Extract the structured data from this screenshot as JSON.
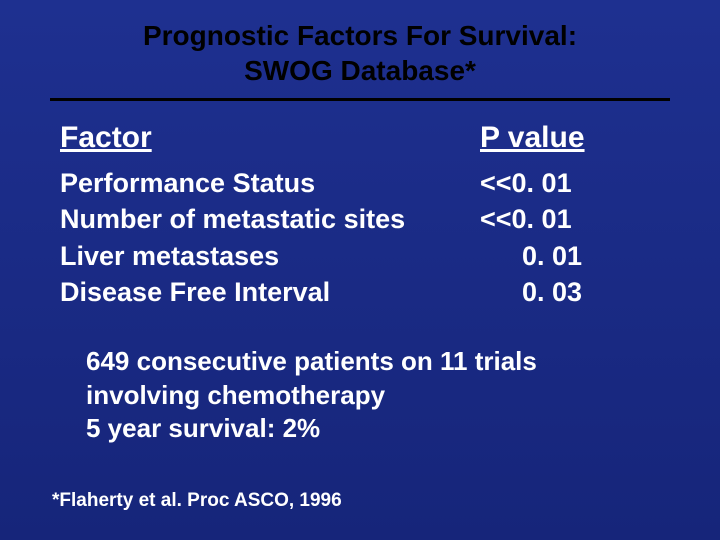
{
  "colors": {
    "background_top": "#1e3090",
    "background_bottom": "#16257a",
    "title_text": "#000000",
    "body_text": "#ffffff",
    "rule": "#000000"
  },
  "typography": {
    "family": "Arial",
    "title_fontsize": 28,
    "header_fontsize": 30,
    "row_fontsize": 27,
    "notes_fontsize": 26,
    "footnote_fontsize": 19,
    "weight": "bold"
  },
  "title": {
    "line1": "Prognostic Factors For Survival:",
    "line2": "SWOG Database*"
  },
  "table": {
    "headers": {
      "factor": "Factor",
      "pvalue": "P value"
    },
    "rows": [
      {
        "factor": "Performance Status",
        "pvalue": "<<0. 01",
        "indent": false
      },
      {
        "factor": "Number of metastatic sites",
        "pvalue": "<<0. 01",
        "indent": false
      },
      {
        "factor": "Liver metastases",
        "pvalue": "0. 01",
        "indent": true
      },
      {
        "factor": "Disease Free Interval",
        "pvalue": "0. 03",
        "indent": true
      }
    ]
  },
  "notes": {
    "line1": "649 consecutive patients on 11 trials",
    "line2": "involving chemotherapy",
    "line3": "5 year survival: 2%"
  },
  "footnote": "*Flaherty et al. Proc ASCO, 1996"
}
